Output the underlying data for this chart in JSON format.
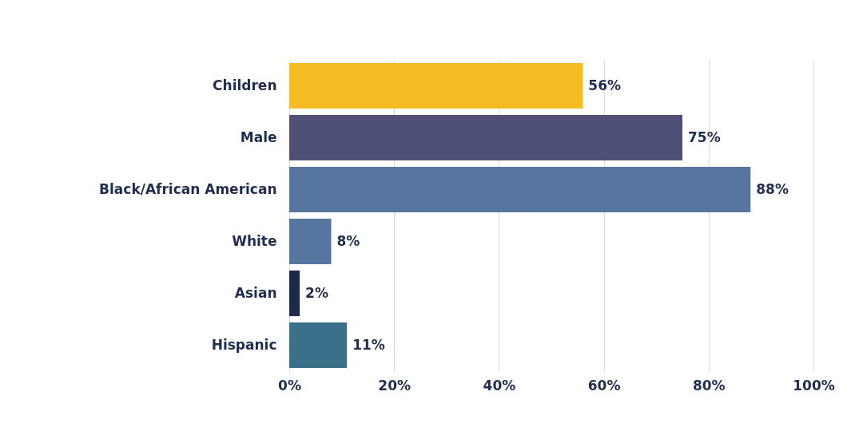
{
  "chart_data": {
    "type": "bar",
    "orientation": "horizontal",
    "categories": [
      "Children",
      "Male",
      "Black/African American",
      "White",
      "Asian",
      "Hispanic"
    ],
    "values": [
      56,
      75,
      88,
      8,
      2,
      11
    ],
    "colors": [
      "#f4bb22",
      "#4f5077",
      "#57769f",
      "#57769f",
      "#1a2b4b",
      "#3a7089"
    ],
    "value_labels": [
      "56%",
      "75%",
      "88%",
      "8%",
      "2%",
      "11%"
    ],
    "xlim": [
      0,
      100
    ],
    "xticks": [
      {
        "value": 0,
        "label": "0%"
      },
      {
        "value": 20,
        "label": "20%"
      },
      {
        "value": 40,
        "label": "40%"
      },
      {
        "value": 60,
        "label": "60%"
      },
      {
        "value": 80,
        "label": "80%"
      },
      {
        "value": 100,
        "label": "100%"
      }
    ],
    "grid": "x"
  }
}
